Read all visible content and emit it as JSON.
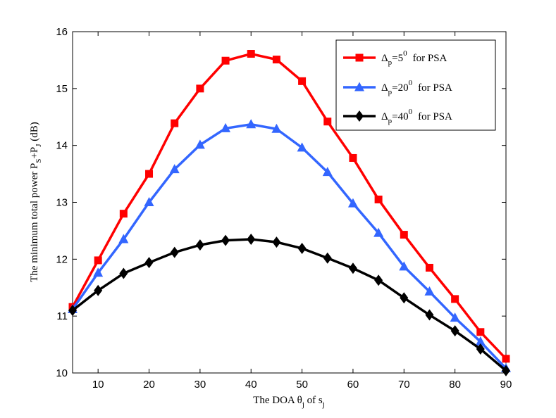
{
  "chart_data": {
    "type": "line",
    "title": "",
    "xlabel": "The DOA θj of sj",
    "ylabel": "The minimum  total power PS+PJ (dB)",
    "xlim": [
      5,
      90
    ],
    "ylim": [
      10,
      16
    ],
    "xticks": [
      10,
      20,
      30,
      40,
      50,
      60,
      70,
      80,
      90
    ],
    "yticks": [
      10,
      11,
      12,
      13,
      14,
      15,
      16
    ],
    "grid": false,
    "legend_position": "top-right",
    "x": [
      5,
      10,
      15,
      20,
      25,
      30,
      35,
      40,
      45,
      50,
      55,
      60,
      65,
      70,
      75,
      80,
      85,
      90
    ],
    "series": [
      {
        "name": "Δp=5° for PSA",
        "label_parts": {
          "delta": "Δ",
          "sub": "p",
          "eq": "=5",
          "sup": "0",
          "suffix": "for PSA"
        },
        "color": "#ff0000",
        "marker": "square",
        "values": [
          11.16,
          11.98,
          12.8,
          13.5,
          14.39,
          15.0,
          15.49,
          15.61,
          15.51,
          15.13,
          14.42,
          13.78,
          13.05,
          12.43,
          11.85,
          11.3,
          10.72,
          10.25
        ]
      },
      {
        "name": "Δp=20° for PSA",
        "label_parts": {
          "delta": "Δ",
          "sub": "p",
          "eq": "=20",
          "sup": "0",
          "suffix": "for PSA"
        },
        "color": "#3366ff",
        "marker": "triangle",
        "values": [
          11.12,
          11.76,
          12.35,
          13.0,
          13.58,
          14.01,
          14.3,
          14.37,
          14.29,
          13.96,
          13.53,
          12.98,
          12.46,
          11.87,
          11.43,
          10.97,
          10.55,
          10.08
        ]
      },
      {
        "name": "Δp=40° for PSA",
        "label_parts": {
          "delta": "Δ",
          "sub": "p",
          "eq": "=40",
          "sup": "0",
          "suffix": "for PSA"
        },
        "color": "#000000",
        "marker": "diamond",
        "values": [
          11.1,
          11.45,
          11.75,
          11.94,
          12.12,
          12.25,
          12.33,
          12.35,
          12.3,
          12.19,
          12.02,
          11.84,
          11.63,
          11.32,
          11.02,
          10.74,
          10.42,
          10.04
        ]
      }
    ],
    "xlabel_parts": {
      "pre": "The DOA ",
      "theta": "θ",
      "theta_sub": "j",
      "mid": " of s",
      "s_sub": "j"
    },
    "ylabel_parts": {
      "pre": "The minimum  total power P",
      "p1_sub": "S",
      "plus": "+P",
      "p2_sub": "J",
      "post": " (dB)"
    }
  }
}
